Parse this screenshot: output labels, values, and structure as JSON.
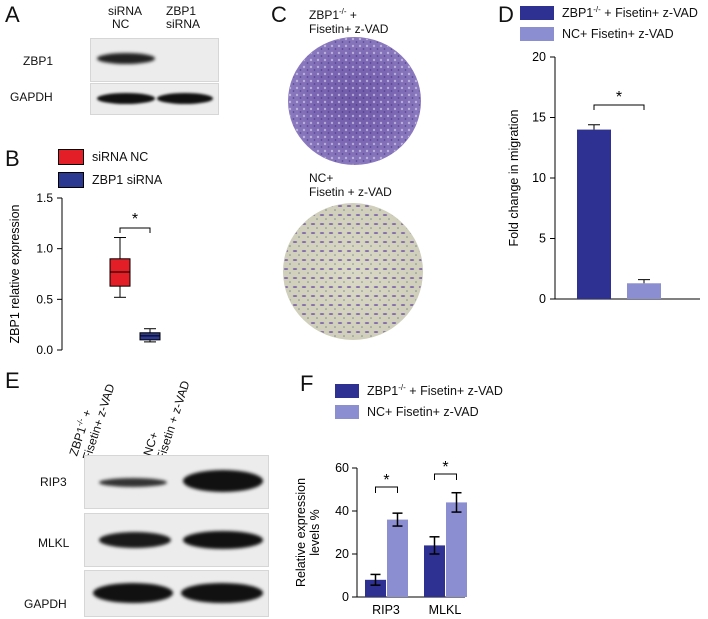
{
  "panels": {
    "a": "A",
    "b": "B",
    "c": "C",
    "d": "D",
    "e": "E",
    "f": "F"
  },
  "panelA": {
    "col1_line1": "siRNA",
    "col1_line2": "NC",
    "col2_line1": "ZBP1",
    "col2_line2": "siRNA",
    "row1": "ZBP1",
    "row2": "GAPDH"
  },
  "panelB": {
    "legend": [
      {
        "name": "siRNA NC",
        "color": "#e41e26"
      },
      {
        "name": "ZBP1 siRNA",
        "color": "#2b3990"
      }
    ],
    "ylabel": "ZBP1 relative expression",
    "sig": "*"
  },
  "panelC": {
    "top_line1": "ZBP1",
    "top_sup": "-/-",
    "top_plus": " +",
    "top_line2": "Fisetin+ z-VAD",
    "bottom_line1": "NC+",
    "bottom_line2": "Fisetin + z-VAD"
  },
  "panelD": {
    "legend": [
      {
        "name_pre": "ZBP1",
        "name_sup": "-/-",
        "name_post": " + Fisetin+ z-VAD",
        "color": "#2e3192"
      },
      {
        "name": "NC+ Fisetin+ z-VAD",
        "color": "#8b8fd1"
      }
    ],
    "ylabel": "Fold change in migration",
    "sig": "*"
  },
  "panelE": {
    "col1_line1_pre": "ZBP1",
    "col1_sup": "-/-",
    "col1_line1_post": " +",
    "col1_line2": "Fisetin+ z-VAD",
    "col2_line1": "NC+",
    "col2_line2": "Fisetin + z-VAD",
    "row1": "RIP3",
    "row2": "MLKL",
    "row3": "GAPDH"
  },
  "panelF": {
    "legend": [
      {
        "name_pre": "ZBP1",
        "name_sup": "-/-",
        "name_post": " + Fisetin+ z-VAD",
        "color": "#2e3192"
      },
      {
        "name": "NC+ Fisetin+ z-VAD",
        "color": "#8b8fd1"
      }
    ],
    "ylabel_line1": "Relative expression",
    "ylabel_line2": "levels %",
    "sig": "*"
  },
  "chart_data": [
    {
      "id": "B",
      "type": "box",
      "categories": [
        "siRNA NC",
        "ZBP1 siRNA"
      ],
      "boxes": [
        {
          "name": "siRNA NC",
          "min": 0.52,
          "q1": 0.63,
          "median": 0.77,
          "q3": 0.9,
          "max": 1.11
        },
        {
          "name": "ZBP1 siRNA",
          "min": 0.08,
          "q1": 0.1,
          "median": 0.14,
          "q3": 0.17,
          "max": 0.21
        }
      ],
      "yticks": [
        "0.0",
        "0.5",
        "1.0",
        "1.5"
      ],
      "ylim": [
        0,
        1.5
      ],
      "ylabel": "ZBP1 relative expression"
    },
    {
      "id": "D",
      "type": "bar",
      "categories": [
        "ZBP1-/- + Fisetin+ z-VAD",
        "NC+ Fisetin+ z-VAD"
      ],
      "values": [
        14.0,
        1.3
      ],
      "errors": [
        0.4,
        0.3
      ],
      "yticks": [
        "0",
        "5",
        "10",
        "15",
        "20"
      ],
      "ylim": [
        0,
        20
      ],
      "ylabel": "Fold change in migration"
    },
    {
      "id": "F",
      "type": "bar",
      "categories": [
        "RIP3",
        "MLKL"
      ],
      "series": [
        {
          "name": "ZBP1-/- + Fisetin+ z-VAD",
          "values": [
            8,
            24
          ],
          "errors": [
            2.5,
            4
          ]
        },
        {
          "name": "NC+ Fisetin+ z-VAD",
          "values": [
            36,
            44
          ],
          "errors": [
            3,
            4.5
          ]
        }
      ],
      "yticks": [
        "0",
        "20",
        "40",
        "60"
      ],
      "ylim": [
        0,
        60
      ],
      "ylabel": "Relative expression levels %"
    }
  ]
}
